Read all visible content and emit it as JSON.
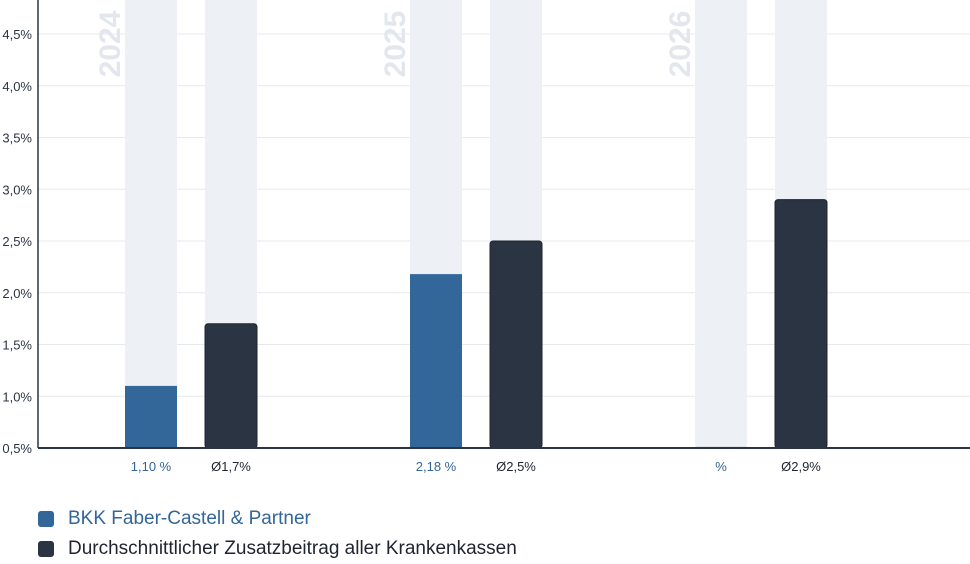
{
  "colors": {
    "provider": "#336699",
    "average": "#2b3443",
    "background_bar": "#edf1f6",
    "year_label": "#e2e7ee",
    "grid": "#e6e9ee",
    "axis": "#2b3443"
  },
  "chart_data": {
    "type": "bar",
    "categories": [
      "2024",
      "2025",
      "2026"
    ],
    "series": [
      {
        "name": "BKK Faber-Castell & Partner",
        "values": [
          1.1,
          2.18,
          null
        ],
        "labels": [
          "1,10 %",
          "2,18 %",
          "%"
        ]
      },
      {
        "name": "Durchschnittlicher Zusatzbeitrag aller Krankenkassen",
        "values": [
          1.7,
          2.5,
          2.9
        ],
        "labels": [
          "Ø1,7%",
          "Ø2,5%",
          "Ø2,9%"
        ]
      }
    ],
    "yticks": [
      0.5,
      1.0,
      1.5,
      2.0,
      2.5,
      3.0,
      3.5,
      4.0,
      4.5
    ],
    "ytick_labels": [
      "0,5%",
      "1,0%",
      "1,5%",
      "2,0%",
      "2,5%",
      "3,0%",
      "3,5%",
      "4,0%",
      "4,5%"
    ],
    "ylim": [
      0.5,
      4.85
    ],
    "grid": true,
    "legend_position": "bottom-left"
  },
  "legend": [
    {
      "label": "BKK Faber-Castell & Partner",
      "color": "#336699"
    },
    {
      "label": "Durchschnittlicher Zusatzbeitrag aller Krankenkassen",
      "color": "#2b3443"
    }
  ]
}
